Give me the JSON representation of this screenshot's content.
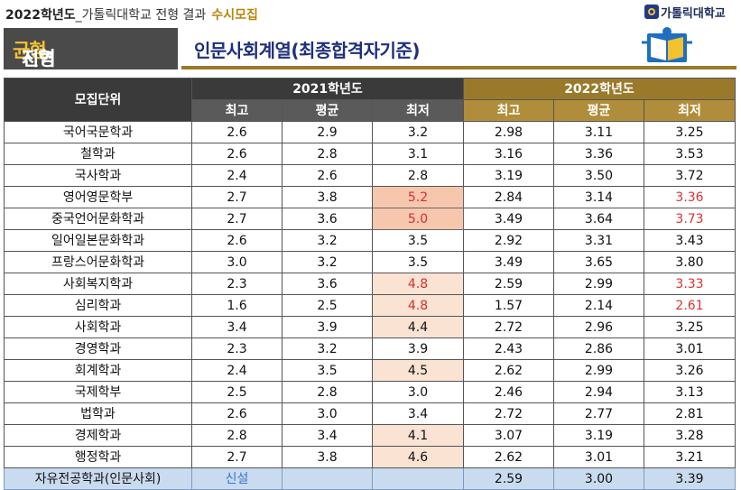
{
  "header": {
    "year_prefix": "2022학년도",
    "sub": "_가톨릭대학교 전형 결과",
    "highlight": "수시모집",
    "logo_text": "가톨릭대학교"
  },
  "banner": {
    "left_part1": "지역",
    "left_part2": "균형",
    "left_part3": "전형",
    "right_title": "인문사회계열(최종합격자기준)"
  },
  "table": {
    "unit_header": "모집단위",
    "year1": "2021학년도",
    "year2": "2022학년도",
    "cols": [
      "최고",
      "평균",
      "최저",
      "최고",
      "평균",
      "최저"
    ],
    "rows": [
      {
        "name": "국어국문학과",
        "c": [
          "2.6",
          "2.9",
          "3.2",
          "2.98",
          "3.11",
          "3.25"
        ],
        "h": "",
        "r": false
      },
      {
        "name": "철학과",
        "c": [
          "2.6",
          "2.8",
          "3.1",
          "3.16",
          "3.36",
          "3.53"
        ],
        "h": "",
        "r": false
      },
      {
        "name": "국사학과",
        "c": [
          "2.4",
          "2.6",
          "2.8",
          "3.19",
          "3.50",
          "3.72"
        ],
        "h": "",
        "r": false
      },
      {
        "name": "영어영문학부",
        "c": [
          "2.7",
          "3.8",
          "5.2",
          "2.84",
          "3.14",
          "3.36"
        ],
        "h": "strong",
        "r": true
      },
      {
        "name": "중국언어문화학과",
        "c": [
          "2.7",
          "3.6",
          "5.0",
          "3.49",
          "3.64",
          "3.73"
        ],
        "h": "strong",
        "r": true
      },
      {
        "name": "일어일본문화학과",
        "c": [
          "2.6",
          "3.2",
          "3.5",
          "2.92",
          "3.31",
          "3.43"
        ],
        "h": "",
        "r": false
      },
      {
        "name": "프랑스어문화학과",
        "c": [
          "3.0",
          "3.2",
          "3.5",
          "3.49",
          "3.65",
          "3.80"
        ],
        "h": "",
        "r": false
      },
      {
        "name": "사회복지학과",
        "c": [
          "2.3",
          "3.6",
          "4.8",
          "2.59",
          "2.99",
          "3.33"
        ],
        "h": "light",
        "r": true
      },
      {
        "name": "심리학과",
        "c": [
          "1.6",
          "2.5",
          "4.8",
          "1.57",
          "2.14",
          "2.61"
        ],
        "h": "light",
        "r": true
      },
      {
        "name": "사회학과",
        "c": [
          "3.4",
          "3.9",
          "4.4",
          "2.72",
          "2.96",
          "3.25"
        ],
        "h": "plain",
        "r": false
      },
      {
        "name": "경영학과",
        "c": [
          "2.3",
          "3.2",
          "3.9",
          "2.43",
          "2.86",
          "3.01"
        ],
        "h": "",
        "r": false
      },
      {
        "name": "회계학과",
        "c": [
          "2.4",
          "3.5",
          "4.5",
          "2.62",
          "2.99",
          "3.26"
        ],
        "h": "plain",
        "r": false
      },
      {
        "name": "국제학부",
        "c": [
          "2.5",
          "2.8",
          "3.0",
          "2.46",
          "2.94",
          "3.13"
        ],
        "h": "",
        "r": false
      },
      {
        "name": "법학과",
        "c": [
          "2.6",
          "3.0",
          "3.4",
          "2.72",
          "2.77",
          "2.81"
        ],
        "h": "",
        "r": false
      },
      {
        "name": "경제학과",
        "c": [
          "2.8",
          "3.4",
          "4.1",
          "3.07",
          "3.19",
          "3.28"
        ],
        "h": "plain",
        "r": false
      },
      {
        "name": "행정학과",
        "c": [
          "2.7",
          "3.8",
          "4.6",
          "2.62",
          "3.01",
          "3.21"
        ],
        "h": "plain",
        "r": false
      }
    ],
    "last_row": {
      "name": "자유전공학과(인문사회)",
      "new_label": "신설",
      "c": [
        "2.59",
        "3.00",
        "3.39"
      ]
    }
  }
}
